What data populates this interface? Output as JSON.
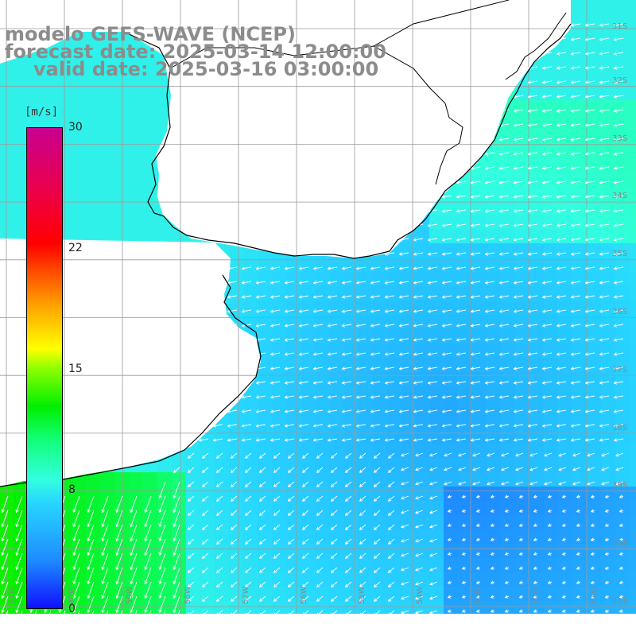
{
  "header": {
    "line1": "modelo GEFS-WAVE (NCEP)",
    "line2": "forecast date: 2025-03-14 12:00:00",
    "line3": "valid date: 2025-03-16 03:00:00"
  },
  "colorbar": {
    "unit": "[m/s]",
    "ticks": [
      "30",
      "22",
      "15",
      "8",
      "0"
    ]
  },
  "map": {
    "lat_labels": [
      "31S",
      "32S",
      "33S",
      "34S",
      "35S",
      "36S",
      "37S",
      "38S",
      "39S",
      "40S",
      "41S"
    ],
    "lon_labels": [
      "61W",
      "60W",
      "59W",
      "58W",
      "57W",
      "56W",
      "55W",
      "54W",
      "53W",
      "52W",
      "51W"
    ],
    "colors": {
      "land": "#ffffff",
      "coastline": "#000000",
      "grid": "#9a9a9a",
      "arrows": "#ffffff",
      "title_text": "#8c8c8c",
      "wind_0": "#1010ff",
      "wind_8": "#33ffe0",
      "wind_15": "#ffff00",
      "wind_22": "#ff4c00",
      "wind_30": "#c80090"
    },
    "wind_direction": "flow toward the south-west to west, stronger near the south-western coast"
  }
}
